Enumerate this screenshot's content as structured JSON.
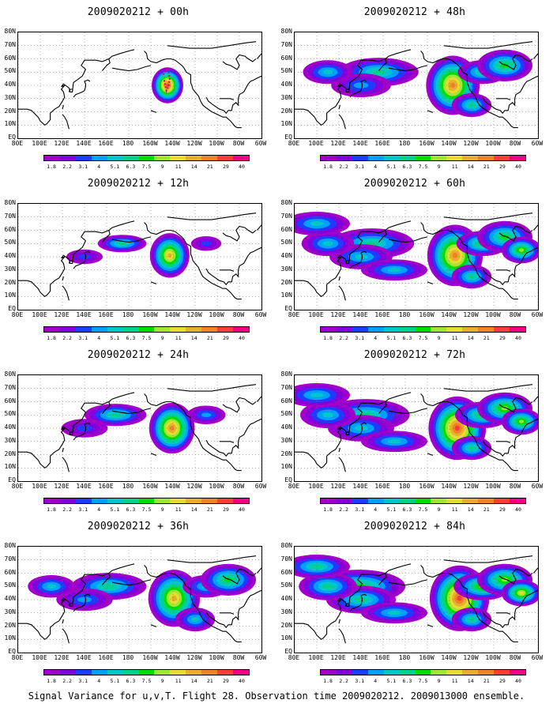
{
  "panels": [
    {
      "title": "2009020212 + 00h",
      "spread": 0.35,
      "intensity": 0.95
    },
    {
      "title": "2009020212 + 12h",
      "spread": 0.55,
      "intensity": 0.8
    },
    {
      "title": "2009020212 + 24h",
      "spread": 0.7,
      "intensity": 0.82
    },
    {
      "title": "2009020212 + 36h",
      "spread": 0.85,
      "intensity": 0.8
    },
    {
      "title": "2009020212 + 48h",
      "spread": 0.9,
      "intensity": 0.85
    },
    {
      "title": "2009020212 + 60h",
      "spread": 0.95,
      "intensity": 0.88
    },
    {
      "title": "2009020212 + 72h",
      "spread": 1.0,
      "intensity": 0.9
    },
    {
      "title": "2009020212 + 84h",
      "spread": 1.05,
      "intensity": 0.95
    }
  ],
  "lat_labels": [
    "80N",
    "70N",
    "60N",
    "50N",
    "40N",
    "30N",
    "20N",
    "10N",
    "EQ"
  ],
  "lon_labels": [
    "80E",
    "100E",
    "120E",
    "140E",
    "160E",
    "180",
    "160W",
    "140W",
    "120W",
    "100W",
    "80W",
    "60W"
  ],
  "colorbar": {
    "levels": [
      "1.8",
      "2.2",
      "3.1",
      "4",
      "5.1",
      "6.3",
      "7.5",
      "9",
      "11",
      "14",
      "21",
      "29",
      "40"
    ],
    "colors": [
      "#a000c8",
      "#8200dc",
      "#1e3cff",
      "#00a0ff",
      "#00c8c8",
      "#00d28c",
      "#00dc00",
      "#a0e632",
      "#e6dc32",
      "#e6af2d",
      "#f08228",
      "#fa3c3c",
      "#f00082"
    ]
  },
  "footer": "Signal Variance for u,v,T. Flight 28. Observation time 2009020212. 2009013000 ensemble.",
  "icons": [
    "coastline-map",
    "flight-track-marker"
  ]
}
